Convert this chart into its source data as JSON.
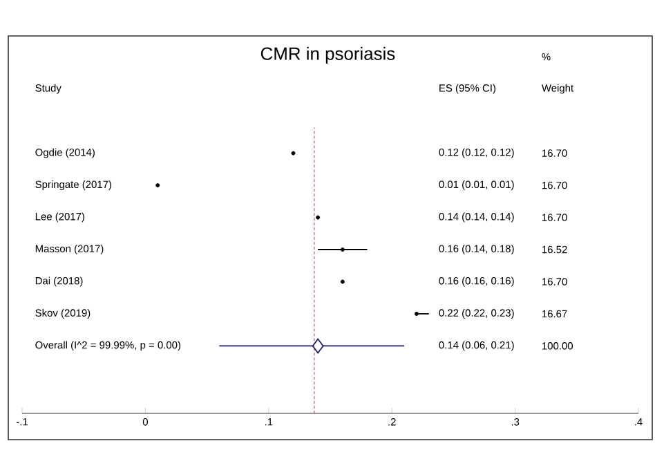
{
  "chart_data": {
    "type": "scatter",
    "orientation": "horizontal",
    "title": "CMR in psoriasis",
    "categories": [
      "Ogdie (2014)",
      "Springate (2017)",
      "Lee (2017)",
      "Masson (2017)",
      "Dai (2018)",
      "Skov (2019)",
      "Overall  (I^2 = 99.99%, p = 0.00)"
    ],
    "series": [
      {
        "color": "#000000",
        "marker": "circle",
        "values": [
          0.12,
          0.01,
          0.14,
          0.16,
          0.16,
          0.22,
          null
        ],
        "errors": [
          [
            0.12,
            0.12
          ],
          [
            0.01,
            0.01
          ],
          [
            0.14,
            0.14
          ],
          [
            0.14,
            0.18
          ],
          [
            0.16,
            0.16
          ],
          [
            0.22,
            0.23
          ],
          null
        ]
      },
      {
        "color": "#1c1c72",
        "marker": "diamond",
        "values": [
          null,
          null,
          null,
          null,
          null,
          null,
          0.14
        ],
        "errors": [
          null,
          null,
          null,
          null,
          null,
          null,
          [
            0.06,
            0.21
          ]
        ]
      }
    ],
    "value_labels": [
      "0.12 (0.12, 0.12)",
      "0.01 (0.01, 0.01)",
      "0.14 (0.14, 0.14)",
      "0.16 (0.14, 0.18)",
      "0.16 (0.16, 0.16)",
      "0.22 (0.22, 0.23)",
      "0.14 (0.06, 0.21)"
    ],
    "annotations": [
      "Study",
      "ES (95% CI)",
      "%",
      "Weight",
      "16.70",
      "16.70",
      "16.70",
      "16.52",
      "16.70",
      "16.67",
      "100.00"
    ],
    "ref_lines": [
      {
        "axis": "x",
        "value": 0.137,
        "color": "#b03030",
        "line_style": "dashed"
      }
    ],
    "xlim": [
      -0.1,
      0.4
    ],
    "xticks": [
      {
        "value": -0.1,
        "label": "-.1"
      },
      0,
      {
        "value": 0.1,
        "label": ".1"
      },
      {
        "value": 0.2,
        "label": ".2"
      },
      {
        "value": 0.3,
        "label": ".3"
      },
      {
        "value": 0.4,
        "label": ".4"
      }
    ]
  }
}
